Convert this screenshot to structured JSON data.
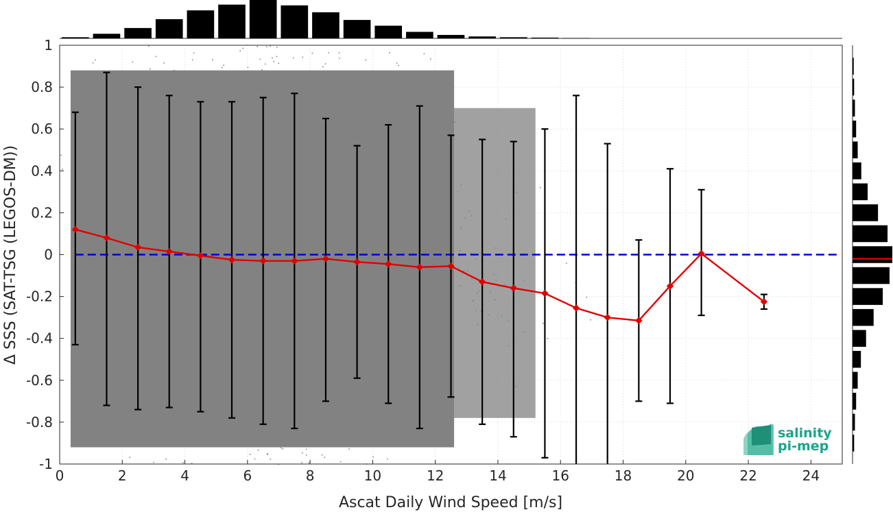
{
  "chart_data": {
    "type": "scatter",
    "title": "",
    "xlabel": "Ascat Daily Wind Speed [m/s]",
    "ylabel": "Δ SSS (SAT-TSG (LEGOS-DM))",
    "xlim": [
      0,
      25
    ],
    "ylim": [
      -1,
      1
    ],
    "x_ticks": [
      "0",
      "2",
      "4",
      "6",
      "8",
      "10",
      "12",
      "14",
      "16",
      "18",
      "20",
      "22",
      "24"
    ],
    "y_ticks": [
      "-1",
      "-0.8",
      "-0.6",
      "-0.4",
      "-0.2",
      "0",
      "0.2",
      "0.4",
      "0.6",
      "0.8",
      "1"
    ],
    "grid": "dotted",
    "reference_line": {
      "y": 0,
      "color": "#0000dd",
      "style": "dashed"
    },
    "binned_mean": {
      "color": "#e00000",
      "x": [
        0.5,
        1.5,
        2.5,
        3.5,
        4.5,
        5.5,
        6.5,
        7.5,
        8.5,
        9.5,
        10.5,
        11.5,
        12.5,
        13.5,
        14.5,
        15.5,
        16.5,
        17.5,
        18.5,
        19.5,
        20.5,
        22.5
      ],
      "y": [
        0.12,
        0.08,
        0.035,
        0.015,
        -0.005,
        -0.025,
        -0.03,
        -0.03,
        -0.02,
        -0.035,
        -0.045,
        -0.06,
        -0.055,
        -0.13,
        -0.16,
        -0.185,
        -0.255,
        -0.3,
        -0.315,
        -0.15,
        0.005,
        -0.225
      ],
      "err_low": [
        -0.43,
        -0.72,
        -0.74,
        -0.73,
        -0.75,
        -0.78,
        -0.81,
        -0.83,
        -0.7,
        -0.59,
        -0.71,
        -0.83,
        -0.68,
        -0.81,
        -0.87,
        -0.97,
        -1.0,
        -1.0,
        -0.7,
        -0.71,
        -0.29,
        -0.26
      ],
      "err_high": [
        0.68,
        0.87,
        0.8,
        0.76,
        0.73,
        0.73,
        0.75,
        0.77,
        0.65,
        0.52,
        0.62,
        0.71,
        0.57,
        0.55,
        0.54,
        0.6,
        0.76,
        0.53,
        0.07,
        0.41,
        0.31,
        -0.19
      ]
    },
    "scatter_color": "#828282",
    "top_histogram": {
      "bins_x": [
        0.5,
        1.5,
        2.5,
        3.5,
        4.5,
        5.5,
        6.5,
        7.5,
        8.5,
        9.5,
        10.5,
        11.5,
        12.5,
        13.5,
        14.5,
        15.5,
        16.5
      ],
      "relative_counts": [
        0.03,
        0.12,
        0.27,
        0.5,
        0.73,
        0.88,
        1.0,
        0.86,
        0.68,
        0.48,
        0.33,
        0.17,
        0.09,
        0.05,
        0.03,
        0.02,
        0.01
      ]
    },
    "right_histogram": {
      "bins_y": [
        0.9,
        0.8,
        0.7,
        0.6,
        0.5,
        0.4,
        0.3,
        0.2,
        0.1,
        0.0,
        -0.1,
        -0.2,
        -0.3,
        -0.4,
        -0.5,
        -0.6,
        -0.7,
        -0.8,
        -0.9
      ],
      "relative_counts": [
        0.03,
        0.04,
        0.06,
        0.09,
        0.13,
        0.22,
        0.38,
        0.64,
        0.88,
        1.0,
        0.93,
        0.76,
        0.53,
        0.34,
        0.21,
        0.13,
        0.09,
        0.06,
        0.04
      ],
      "median_marker_y": -0.02,
      "median_marker_color": "#e00000"
    }
  },
  "logo": {
    "line1": "salinity",
    "line2": "pi-mep",
    "color": "#1aa58a"
  }
}
